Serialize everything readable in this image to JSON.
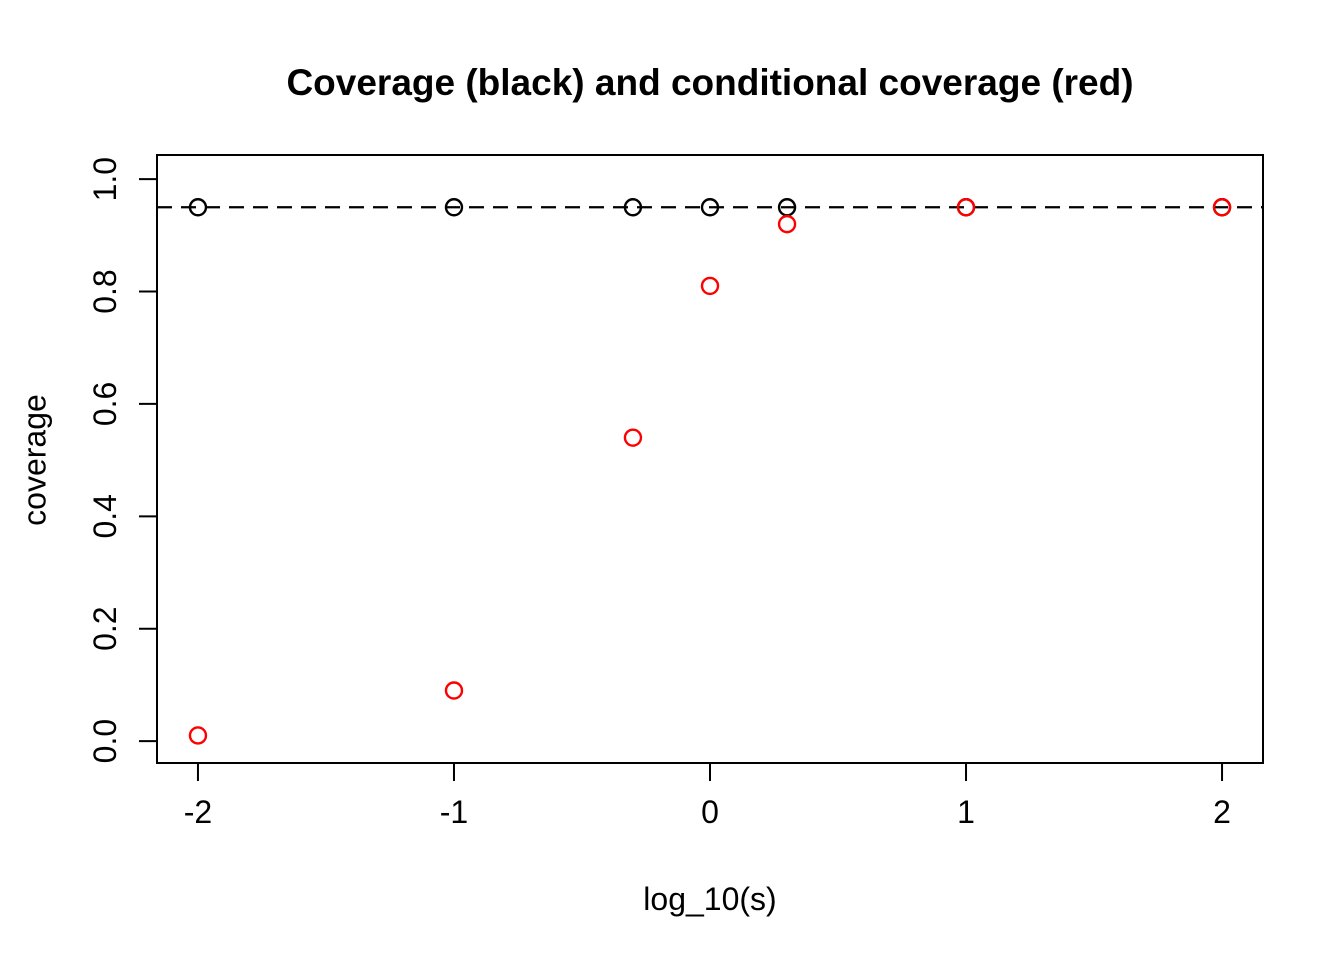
{
  "title": "Coverage (black) and conditional coverage (red)",
  "chart_data": {
    "type": "scatter",
    "title": "Coverage (black) and conditional coverage (red)",
    "xlabel": "log_10(s)",
    "ylabel": "coverage",
    "x": [
      -2,
      -1,
      -0.301,
      0,
      0.301,
      1,
      2
    ],
    "series": [
      {
        "name": "coverage",
        "color": "#000000",
        "marker": "open-circle",
        "values": [
          0.95,
          0.95,
          0.95,
          0.95,
          0.95,
          0.95,
          0.95
        ]
      },
      {
        "name": "conditional coverage",
        "color": "#ff0000",
        "marker": "open-circle",
        "values": [
          0.01,
          0.09,
          0.54,
          0.81,
          0.92,
          0.95,
          0.95
        ]
      }
    ],
    "reference_line": {
      "y": 0.95,
      "style": "dashed",
      "color": "#000000"
    },
    "x_ticks": {
      "values": [
        -2,
        -1,
        0,
        1,
        2
      ],
      "labels": [
        "-2",
        "-1",
        "0",
        "1",
        "2"
      ]
    },
    "y_ticks": {
      "values": [
        0,
        0.2,
        0.4,
        0.6,
        0.8,
        1.0
      ],
      "labels": [
        "0.0",
        "0.2",
        "0.4",
        "0.6",
        "0.8",
        "1.0"
      ]
    },
    "xlim": [
      -2.16,
      2.16
    ],
    "ylim": [
      -0.039,
      1.043
    ],
    "grid": false,
    "legend": "none",
    "background": "#ffffff"
  }
}
